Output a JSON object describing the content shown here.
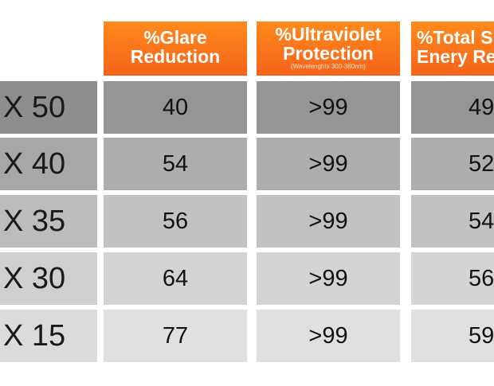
{
  "headers": {
    "glare": {
      "line1": "%Glare",
      "line2": "Reduction"
    },
    "uv": {
      "line1": "%Ultraviolet",
      "line2": "Protection",
      "note": "(Wavelenghts 300-380nm)"
    },
    "energy": {
      "line1": "%Total S",
      "line2": "Enery Re"
    }
  },
  "rows": [
    {
      "label": "X 50",
      "glare": "40",
      "uv": ">99",
      "energy": "49"
    },
    {
      "label": "X 40",
      "glare": "54",
      "uv": ">99",
      "energy": "52"
    },
    {
      "label": "X 35",
      "glare": "56",
      "uv": ">99",
      "energy": "54"
    },
    {
      "label": "X 30",
      "glare": "64",
      "uv": ">99",
      "energy": "56"
    },
    {
      "label": "X 15",
      "glare": "77",
      "uv": ">99",
      "energy": "59"
    }
  ],
  "colors": {
    "header_top": "#ff8a1c",
    "header_bottom": "#f5631a",
    "row_shades": [
      "#959595",
      "#aeaeae",
      "#c2c2c2",
      "#d4d4d4",
      "#e0e0e0"
    ]
  }
}
